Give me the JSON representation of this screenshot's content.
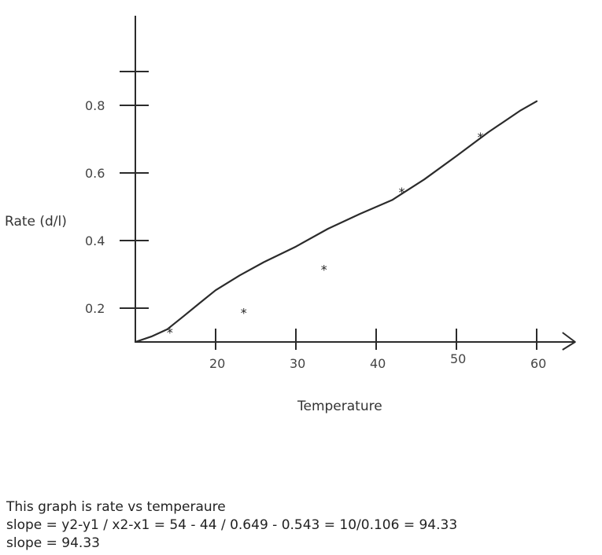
{
  "chart_data": {
    "type": "scatter",
    "title": "",
    "xlabel": "Temperature",
    "ylabel": "Rate (d/l)",
    "xlim": [
      10,
      64
    ],
    "ylim": [
      0.1,
      0.92
    ],
    "x_ticks": [
      {
        "value": 20,
        "label": "20"
      },
      {
        "value": 30,
        "label": "30"
      },
      {
        "value": 40,
        "label": "40"
      },
      {
        "value": 50,
        "label": "50"
      },
      {
        "value": 60,
        "label": "60"
      }
    ],
    "y_ticks": [
      {
        "value": 0.2,
        "label": "0.2"
      },
      {
        "value": 0.4,
        "label": "0.4"
      },
      {
        "value": 0.6,
        "label": "0.6"
      },
      {
        "value": 0.8,
        "label": "0.8"
      },
      {
        "value": 0.9,
        "label": ""
      }
    ],
    "points": [
      {
        "x": 14.3,
        "y": 0.134
      },
      {
        "x": 23.5,
        "y": 0.192
      },
      {
        "x": 33.5,
        "y": 0.32
      },
      {
        "x": 43.2,
        "y": 0.549
      },
      {
        "x": 53.0,
        "y": 0.712
      }
    ],
    "fit_line": {
      "x": [
        10,
        12,
        14,
        16,
        18,
        20,
        23,
        26,
        30,
        34,
        38,
        42,
        46,
        50,
        54,
        58,
        60
      ],
      "y": [
        0.1,
        0.116,
        0.138,
        0.176,
        0.215,
        0.253,
        0.297,
        0.336,
        0.382,
        0.435,
        0.479,
        0.52,
        0.581,
        0.65,
        0.721,
        0.785,
        0.812
      ]
    },
    "grid": false,
    "legend": "none"
  },
  "notes": {
    "line1": "This graph is rate vs temperaure",
    "line2": "slope = y2-y1 / x2-x1 = 54 - 44 / 0.649 - 0.543 = 10/0.106 = 94.33",
    "line3": "slope = 94.33"
  }
}
